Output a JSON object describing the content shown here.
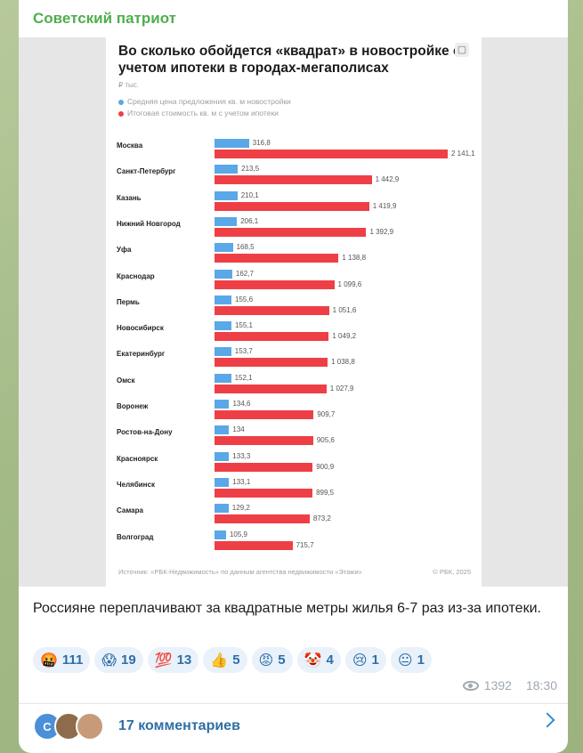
{
  "channel": {
    "name": "Советский патриот"
  },
  "infographic": {
    "title": "Во сколько обойдется «квадрат» в новостройке с учетом ипотеки в городах-мегаполисах",
    "unit": "₽ тыс.",
    "legend": [
      {
        "label": "Средняя цена предложения кв. м новостройки",
        "color": "#5aa8e8"
      },
      {
        "label": "Итоговая стоимость кв. м с учетом ипотеки",
        "color": "#ef3f46"
      }
    ],
    "source": "Источник: «РБК-Недвижимость» по данным агентства недвижимости «Этажи»",
    "copyright": "© РБК, 2025"
  },
  "chart_data": {
    "type": "bar",
    "orientation": "horizontal",
    "categories": [
      "Москва",
      "Санкт-Петербург",
      "Казань",
      "Нижний Новгород",
      "Уфа",
      "Краснодар",
      "Пермь",
      "Новосибирск",
      "Екатеринбург",
      "Омск",
      "Воронеж",
      "Ростов-на-Дону",
      "Красноярск",
      "Челябинск",
      "Самара",
      "Волгоград"
    ],
    "series": [
      {
        "name": "Средняя цена предложения кв. м новостройки",
        "color": "#5aa8e8",
        "values": [
          316.8,
          213.5,
          210.1,
          206.1,
          168.5,
          162.7,
          155.6,
          155.1,
          153.7,
          152.1,
          134.6,
          134,
          133.3,
          133.1,
          129.2,
          105.9
        ],
        "labels": [
          "316,8",
          "213,5",
          "210,1",
          "206,1",
          "168,5",
          "162,7",
          "155,6",
          "155,1",
          "153,7",
          "152,1",
          "134,6",
          "134",
          "133,3",
          "133,1",
          "129,2",
          "105,9"
        ]
      },
      {
        "name": "Итоговая стоимость кв. м с учетом ипотеки",
        "color": "#ef3f46",
        "values": [
          2141.1,
          1442.9,
          1419.9,
          1392.9,
          1138.8,
          1099.6,
          1051.6,
          1049.2,
          1038.8,
          1027.9,
          909.7,
          905.6,
          900.9,
          899.5,
          873.2,
          715.7
        ],
        "labels": [
          "2 141,1",
          "1 442,9",
          "1 419,9",
          "1 392,9",
          "1 138,8",
          "1 099,6",
          "1 051,6",
          "1 049,2",
          "1 038,8",
          "1 027,9",
          "909,7",
          "905,6",
          "900,9",
          "899,5",
          "873,2",
          "715,7"
        ]
      }
    ],
    "xlim": [
      0,
      2141.1
    ],
    "grid": false,
    "legend": "top-left"
  },
  "post": {
    "caption": "Россияне переплачивают за квадратные метры жилья 6-7 раз из-за ипотеки.",
    "reactions": [
      {
        "emoji": "🤬",
        "count": "111",
        "icon": "cursing-face-icon"
      },
      {
        "emoji": "😱",
        "count": "19",
        "icon": "screaming-face-icon"
      },
      {
        "emoji": "💯",
        "count": "13",
        "icon": "hundred-icon"
      },
      {
        "emoji": "👍",
        "count": "5",
        "icon": "thumbs-up-icon"
      },
      {
        "emoji": "😡",
        "count": "5",
        "icon": "angry-face-icon"
      },
      {
        "emoji": "🤡",
        "count": "4",
        "icon": "clown-icon"
      },
      {
        "emoji": "😢",
        "count": "1",
        "icon": "crying-face-icon"
      },
      {
        "emoji": "😐",
        "count": "1",
        "icon": "neutral-face-icon"
      }
    ],
    "views": "1392",
    "time": "18:30"
  },
  "comments": {
    "avatar_initial": "С",
    "label": "17 комментариев"
  }
}
